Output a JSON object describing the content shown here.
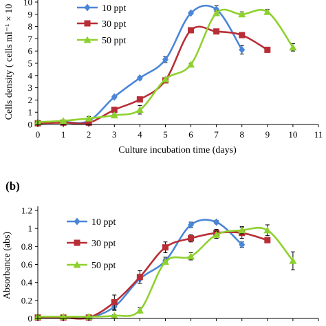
{
  "chart_data": [
    {
      "type": "line",
      "panel_label": "",
      "xlabel": "Culture incubation time (days)",
      "ylabel": "Cells density ( cells ml⁻¹ × 10",
      "xlim": [
        0,
        11
      ],
      "ylim": [
        0,
        10
      ],
      "xticks": [
        "0",
        "1",
        "2",
        "3",
        "4",
        "5",
        "6",
        "7",
        "8",
        "9",
        "10",
        "11"
      ],
      "yticks": [
        "0",
        "1",
        "2",
        "3",
        "4",
        "5",
        "6",
        "7",
        "8",
        "9",
        "10"
      ],
      "legend_position": "top-left",
      "grid": false,
      "series": [
        {
          "name": "10 ppt",
          "color": "#4a86d8",
          "marker": "diamond",
          "smooth": true,
          "points": [
            [
              0,
              0.15
            ],
            [
              1,
              0.2
            ],
            [
              2,
              0.3
            ],
            [
              3,
              2.25
            ],
            [
              4,
              3.8
            ],
            [
              5,
              5.3
            ],
            [
              6,
              9.1
            ],
            [
              7,
              9.4
            ],
            [
              8,
              6.1
            ]
          ],
          "errors": [
            0.05,
            0.05,
            0.05,
            0.1,
            0.15,
            0.25,
            0.1,
            0.3,
            0.35
          ]
        },
        {
          "name": "30 ppt",
          "color": "#b82e36",
          "marker": "square",
          "smooth": true,
          "points": [
            [
              0,
              0.1
            ],
            [
              1,
              0.15
            ],
            [
              2,
              0.15
            ],
            [
              3,
              1.2
            ],
            [
              4,
              2.05
            ],
            [
              5,
              3.6
            ],
            [
              6,
              7.7
            ],
            [
              7,
              7.6
            ],
            [
              8,
              7.3
            ],
            [
              9,
              6.1
            ]
          ],
          "errors": [
            0.05,
            0.05,
            0.05,
            0.1,
            0.1,
            0.15,
            0.1,
            0.1,
            0.1,
            0.1
          ]
        },
        {
          "name": "50 ppt",
          "color": "#8ed12e",
          "marker": "triangle",
          "smooth": true,
          "points": [
            [
              0,
              0.2
            ],
            [
              1,
              0.3
            ],
            [
              2,
              0.5
            ],
            [
              3,
              0.75
            ],
            [
              4,
              1.2
            ],
            [
              5,
              3.7
            ],
            [
              6,
              4.9
            ],
            [
              7,
              9.1
            ],
            [
              8,
              9.0
            ],
            [
              9,
              9.2
            ],
            [
              10,
              6.3
            ]
          ],
          "errors": [
            0.05,
            0.05,
            0.15,
            0.1,
            0.35,
            0.1,
            0.1,
            0.15,
            0.2,
            0.2,
            0.3
          ]
        }
      ]
    },
    {
      "type": "line",
      "panel_label": "(b)",
      "xlabel": "",
      "ylabel": "Absorbance (abs)",
      "xlim": [
        0,
        11
      ],
      "ylim": [
        0,
        1.2
      ],
      "xticks": [],
      "yticks": [
        "0",
        "0.2",
        "0.4",
        "0.6",
        "0.8",
        "1",
        "1.2"
      ],
      "legend_position": "top-left",
      "grid": false,
      "series": [
        {
          "name": "10 ppt",
          "color": "#4a86d8",
          "marker": "diamond",
          "smooth": true,
          "points": [
            [
              0,
              0.01
            ],
            [
              1,
              0.01
            ],
            [
              2,
              0.01
            ],
            [
              3,
              0.13
            ],
            [
              4,
              0.44
            ],
            [
              5,
              0.64
            ],
            [
              6,
              1.04
            ],
            [
              7,
              1.07
            ],
            [
              8,
              0.82
            ]
          ],
          "errors": [
            0.01,
            0.01,
            0.01,
            0.04,
            0.05,
            0.04,
            0.03,
            0.02,
            0.03
          ]
        },
        {
          "name": "30 ppt",
          "color": "#b82e36",
          "marker": "square",
          "smooth": true,
          "points": [
            [
              0,
              0.01
            ],
            [
              1,
              0.01
            ],
            [
              2,
              0.01
            ],
            [
              3,
              0.18
            ],
            [
              4,
              0.46
            ],
            [
              5,
              0.79
            ],
            [
              6,
              0.89
            ],
            [
              7,
              0.95
            ],
            [
              8,
              0.95
            ],
            [
              9,
              0.87
            ]
          ],
          "errors": [
            0.01,
            0.01,
            0.01,
            0.08,
            0.07,
            0.06,
            0.04,
            0.04,
            0.06,
            0.03
          ]
        },
        {
          "name": "50 ppt",
          "color": "#8ed12e",
          "marker": "triangle",
          "smooth": true,
          "points": [
            [
              0,
              0.02
            ],
            [
              1,
              0.02
            ],
            [
              2,
              0.02
            ],
            [
              3,
              0.03
            ],
            [
              4,
              0.09
            ],
            [
              5,
              0.63
            ],
            [
              6,
              0.69
            ],
            [
              7,
              0.93
            ],
            [
              8,
              0.98
            ],
            [
              9,
              0.98
            ],
            [
              10,
              0.64
            ]
          ],
          "errors": [
            0.01,
            0.01,
            0.01,
            0.01,
            0.03,
            0.03,
            0.04,
            0.04,
            0.04,
            0.06,
            0.1
          ]
        }
      ]
    }
  ]
}
